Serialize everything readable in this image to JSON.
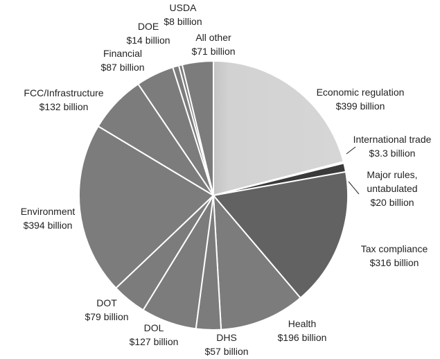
{
  "chart_data": {
    "type": "pie",
    "title": "",
    "slices": [
      {
        "label": "Economic regulation",
        "value_text": "$399 billion",
        "value": 399,
        "color": "#d4d4d4"
      },
      {
        "label": "International trade",
        "value_text": "$3.3 billion",
        "value": 3.3,
        "color": "#9a9a9a"
      },
      {
        "label": "Major rules, untabulated",
        "value_text": "$20 billion",
        "value": 20,
        "color": "#3a3a3a"
      },
      {
        "label": "Tax compliance",
        "value_text": "$316 billion",
        "value": 316,
        "color": "#626262"
      },
      {
        "label": "Health",
        "value_text": "$196 billion",
        "value": 196,
        "color": "#7c7c7c"
      },
      {
        "label": "DHS",
        "value_text": "$57 billion",
        "value": 57,
        "color": "#7c7c7c"
      },
      {
        "label": "DOL",
        "value_text": "$127 billion",
        "value": 127,
        "color": "#7c7c7c"
      },
      {
        "label": "DOT",
        "value_text": "$79 billion",
        "value": 79,
        "color": "#7c7c7c"
      },
      {
        "label": "Environment",
        "value_text": "$394 billion",
        "value": 394,
        "color": "#7c7c7c"
      },
      {
        "label": "FCC/Infrastructure",
        "value_text": "$132 billion",
        "value": 132,
        "color": "#7c7c7c"
      },
      {
        "label": "Financial",
        "value_text": "$87 billion",
        "value": 87,
        "color": "#7c7c7c"
      },
      {
        "label": "DOE",
        "value_text": "$14 billion",
        "value": 14,
        "color": "#7c7c7c"
      },
      {
        "label": "USDA",
        "value_text": "$8 billion",
        "value": 8,
        "color": "#7c7c7c"
      },
      {
        "label": "All other",
        "value_text": "$71 billion",
        "value": 71,
        "color": "#7c7c7c"
      }
    ]
  }
}
